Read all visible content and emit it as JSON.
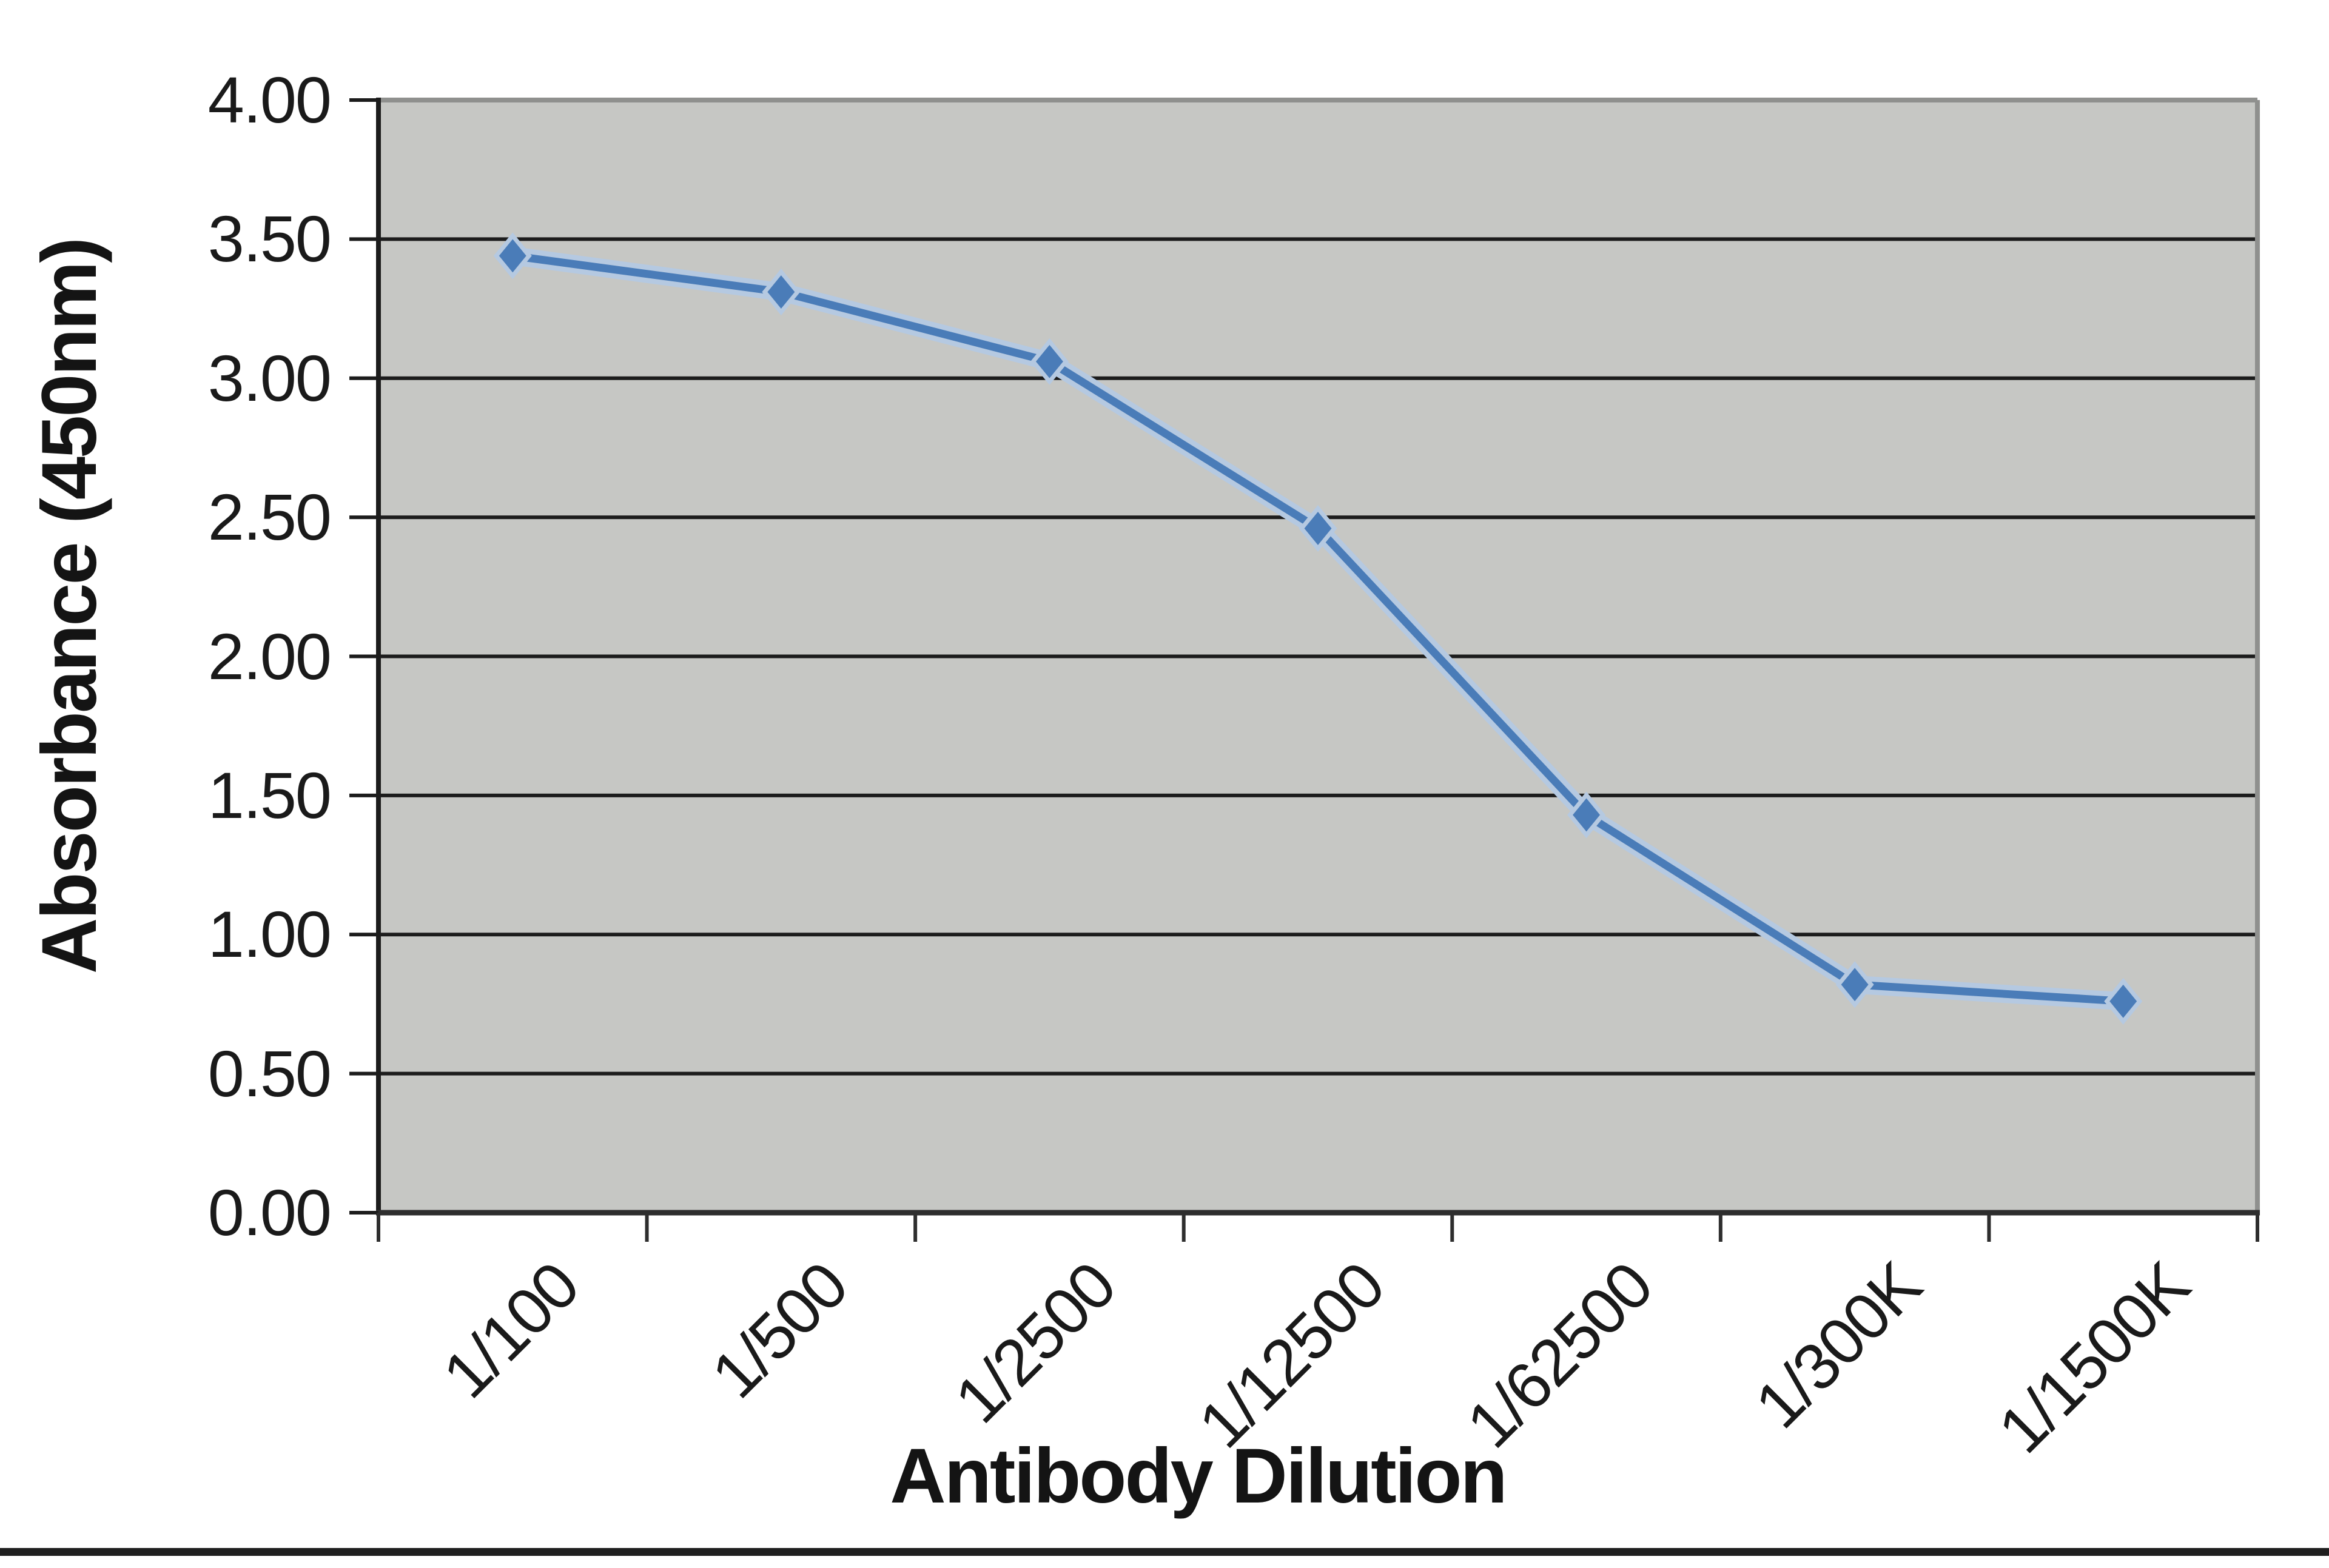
{
  "chart_data": {
    "type": "line",
    "title": "",
    "xlabel": "Antibody Dilution",
    "ylabel": "Absorbance (450nm)",
    "categories": [
      "1/100",
      "1/500",
      "1/2500",
      "1/12500",
      "1/62500",
      "1/300K",
      "1/1500K"
    ],
    "series": [
      {
        "name": "Absorbance (450nm)",
        "values": [
          3.44,
          3.31,
          3.06,
          2.46,
          1.43,
          0.82,
          0.76
        ]
      }
    ],
    "ylim": [
      0,
      4
    ],
    "ytick_step": 0.5,
    "ytick_labels": [
      "0.00",
      "0.50",
      "1.00",
      "1.50",
      "2.00",
      "2.50",
      "3.00",
      "3.50",
      "4.00"
    ],
    "grid": "horizontal-only",
    "legend": "none",
    "marker": "diamond",
    "colors": {
      "line": "#4a7cb8",
      "line_halo": "#b5c9e1",
      "plot_background": "#c6c7c4",
      "gridline": "#1c1c1c",
      "axis_line": "#2e2e2e",
      "plot_border": "#8f908e",
      "page_background": "#ffffff",
      "text": "#141414",
      "bottom_rule": "#1f1f1f"
    }
  }
}
